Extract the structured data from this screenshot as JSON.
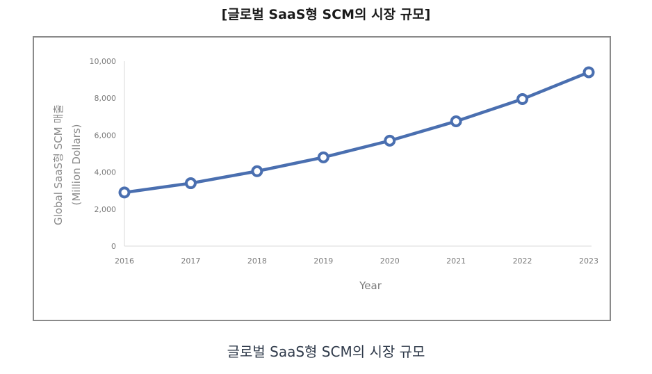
{
  "header": {
    "title": "[글로벌 SaaS형 SCM의 시장 규모]"
  },
  "caption": "글로벌 SaaS형 SCM의 시장 규모",
  "colors": {
    "series": "#4a6fb0",
    "axis_text": "#7a7a7a",
    "frame": "#8a8a8a"
  },
  "chart_data": {
    "type": "line",
    "title": "",
    "xlabel": "Year",
    "ylabel": "Global SaaS형 SCM 매출",
    "ylabel_sub": "(Million Dollars)",
    "x": [
      "2016",
      "2017",
      "2018",
      "2019",
      "2020",
      "2021",
      "2022",
      "2023"
    ],
    "y_ticks": [
      0,
      2000,
      4000,
      6000,
      8000,
      10000
    ],
    "y_tick_labels": [
      "0",
      "2,000",
      "4,000",
      "6,000",
      "8,000",
      "10,000"
    ],
    "ylim": [
      0,
      10000
    ],
    "grid": false,
    "legend": "none",
    "series": [
      {
        "values": [
          2900,
          3400,
          4050,
          4800,
          5700,
          6750,
          7950,
          9400
        ]
      }
    ]
  }
}
